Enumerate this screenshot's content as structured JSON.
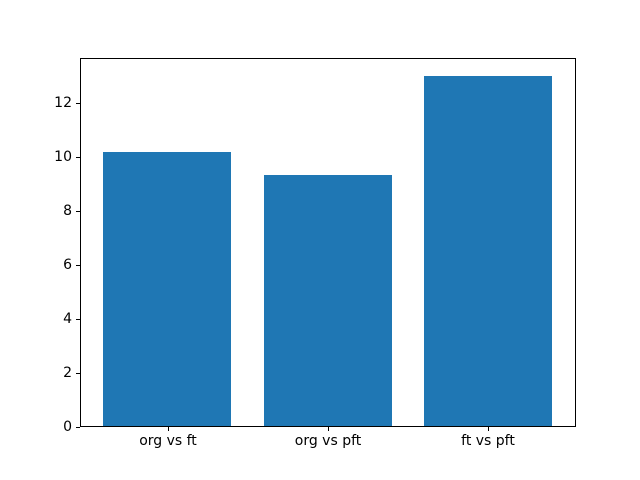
{
  "chart_data": {
    "type": "bar",
    "categories": [
      "org vs ft",
      "org vs pft",
      "ft vs pft"
    ],
    "values": [
      10.2,
      9.35,
      13.0
    ],
    "title": "",
    "xlabel": "",
    "ylabel": "",
    "ylim": [
      0,
      13.65
    ],
    "xlim": [
      -0.54,
      2.54
    ],
    "yticks": [
      0,
      2,
      4,
      6,
      8,
      10,
      12
    ],
    "bar_width_data_units": 0.8,
    "grid": false,
    "legend": null,
    "colors": {
      "bar": "#1f77b4",
      "spine": "#000000",
      "text": "#000000",
      "background": "#ffffff"
    }
  }
}
